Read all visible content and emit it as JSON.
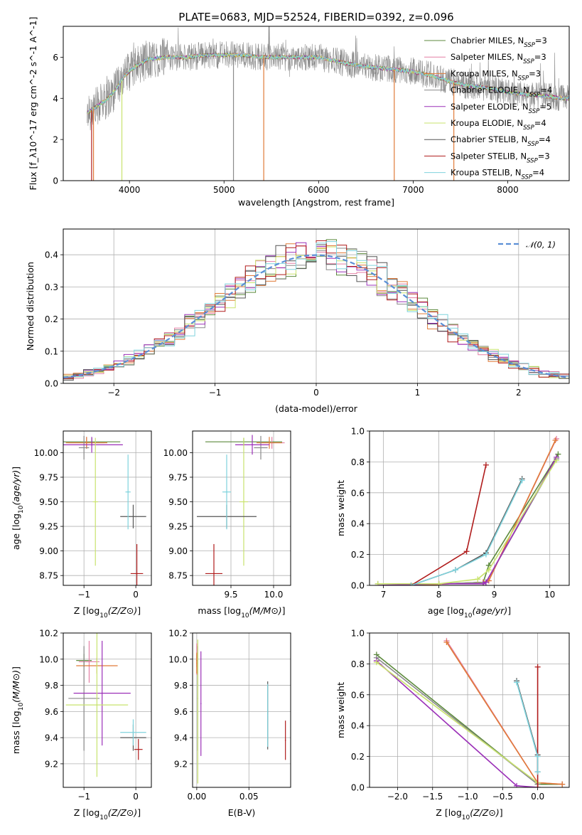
{
  "title": "PLATE=0683, MJD=52524, FIBERID=0392, z=0.096",
  "colors": {
    "Chabrier MILES": "#5c8a3c",
    "Salpeter MILES": "#e47fa4",
    "Kroupa MILES": "#e07b39",
    "Chabrier ELODIE": "#8a8a8a",
    "Salpeter ELODIE": "#9b30b8",
    "Kroupa ELODIE": "#c9e36e",
    "Chabrier STELIB": "#555555",
    "Salpeter STELIB": "#b01c1c",
    "Kroupa STELIB": "#7fd3dd"
  },
  "legend1": [
    {
      "name": "Chabrier MILES",
      "nssp": "3"
    },
    {
      "name": "Salpeter MILES",
      "nssp": "3"
    },
    {
      "name": "Kroupa MILES",
      "nssp": "3"
    },
    {
      "name": "Chabrier ELODIE",
      "nssp": "4"
    },
    {
      "name": "Salpeter ELODIE",
      "nssp": "5"
    },
    {
      "name": "Kroupa ELODIE",
      "nssp": "4"
    },
    {
      "name": "Chabrier STELIB",
      "nssp": "4"
    },
    {
      "name": "Salpeter STELIB",
      "nssp": "3"
    },
    {
      "name": "Kroupa STELIB",
      "nssp": "4"
    }
  ],
  "chart_data": [
    {
      "id": "spectrum",
      "type": "line",
      "xlabel": "wavelength [Angstrom, rest frame]",
      "ylabel": "Flux [f_λ10^-17 erg cm^-2 s^-1 A^-1]",
      "xlim": [
        3300,
        8650
      ],
      "ylim": [
        0,
        7.5
      ],
      "xticks": [
        4000,
        5000,
        6000,
        7000,
        8000
      ],
      "yticks": [
        0,
        2,
        4,
        6
      ],
      "continuum": {
        "x": [
          3550,
          3650,
          3750,
          3850,
          3950,
          4050,
          4200,
          4400,
          4600,
          4800,
          5000,
          5200,
          5400,
          5600,
          5800,
          6000,
          6200,
          6400,
          6600,
          6800,
          7000,
          7200,
          7400,
          7600,
          7800,
          8000,
          8200,
          8400,
          8600
        ],
        "y": [
          3.3,
          3.6,
          3.9,
          4.4,
          5.1,
          5.5,
          5.9,
          6.0,
          6.0,
          6.1,
          6.1,
          6.1,
          6.0,
          6.0,
          6.0,
          6.0,
          5.8,
          5.6,
          5.5,
          5.4,
          5.3,
          5.1,
          4.8,
          4.6,
          4.5,
          4.3,
          4.2,
          4.1,
          4.0
        ]
      }
    },
    {
      "id": "residuals",
      "type": "histogram",
      "xlabel": "(data-model)/error",
      "ylabel": "Normed distribution",
      "xlim": [
        -2.5,
        2.5
      ],
      "ylim": [
        0,
        0.48
      ],
      "xticks": [
        -2,
        -1,
        0,
        1,
        2
      ],
      "yticks": [
        0.0,
        0.1,
        0.2,
        0.3,
        0.4
      ],
      "bin_width": 0.1,
      "reference": {
        "name": "𝒩(0, 1)",
        "mean": 0,
        "sigma": 1
      }
    },
    {
      "id": "age_vs_Z",
      "type": "scatter",
      "xlabel": "Z [log10(Z/Z⊙)]",
      "ylabel": "age [log10(age/yr)]",
      "xlim": [
        -1.4,
        0.3
      ],
      "ylim": [
        8.65,
        10.22
      ],
      "xticks": [
        -1,
        0
      ],
      "yticks": [
        8.75,
        9.0,
        9.25,
        9.5,
        9.75,
        10.0
      ],
      "points": [
        {
          "s": "Chabrier MILES",
          "x": -0.85,
          "xerr": 0.55,
          "y": 10.11,
          "yerr": 0.04
        },
        {
          "s": "Salpeter MILES",
          "x": -0.95,
          "xerr": 0.35,
          "y": 10.1,
          "yerr": 0.06
        },
        {
          "s": "Kroupa MILES",
          "x": -0.95,
          "xerr": 0.4,
          "y": 10.1,
          "yerr": 0.06
        },
        {
          "s": "Chabrier ELODIE",
          "x": -1.0,
          "xerr": 0.1,
          "y": 10.05,
          "yerr": 0.12
        },
        {
          "s": "Salpeter ELODIE",
          "x": -0.85,
          "xerr": 0.6,
          "y": 10.08,
          "yerr": 0.08
        },
        {
          "s": "Kroupa ELODIE",
          "x": -0.78,
          "xerr": 0.05,
          "y": 9.5,
          "yerr": 0.65
        },
        {
          "s": "Chabrier STELIB",
          "x": -0.05,
          "xerr": 0.25,
          "y": 9.35,
          "yerr": 0.12
        },
        {
          "s": "Salpeter STELIB",
          "x": 0.02,
          "xerr": 0.12,
          "y": 8.77,
          "yerr": 0.3
        },
        {
          "s": "Kroupa STELIB",
          "x": -0.15,
          "xerr": 0.05,
          "y": 9.6,
          "yerr": 0.38
        }
      ]
    },
    {
      "id": "age_vs_mass",
      "type": "scatter",
      "xlabel": "mass [log10(M/M⊙)]",
      "ylabel": "",
      "xlim": [
        9.05,
        10.2
      ],
      "ylim": [
        8.65,
        10.22
      ],
      "xticks": [
        9.5,
        10.0
      ],
      "yticks": [
        8.75,
        9.0,
        9.25,
        9.5,
        9.75,
        10.0
      ],
      "points": [
        {
          "s": "Chabrier MILES",
          "x": 9.65,
          "xerr": 0.45,
          "y": 10.11,
          "yerr": 0.04
        },
        {
          "s": "Salpeter MILES",
          "x": 9.98,
          "xerr": 0.15,
          "y": 10.1,
          "yerr": 0.06
        },
        {
          "s": "Kroupa MILES",
          "x": 9.95,
          "xerr": 0.15,
          "y": 10.1,
          "yerr": 0.06
        },
        {
          "s": "Chabrier ELODIE",
          "x": 9.85,
          "xerr": 0.08,
          "y": 10.05,
          "yerr": 0.12
        },
        {
          "s": "Salpeter ELODIE",
          "x": 9.75,
          "xerr": 0.2,
          "y": 10.08,
          "yerr": 0.1
        },
        {
          "s": "Kroupa ELODIE",
          "x": 9.65,
          "xerr": 0.05,
          "y": 9.5,
          "yerr": 0.65
        },
        {
          "s": "Chabrier STELIB",
          "x": 9.45,
          "xerr": 0.35,
          "y": 9.35,
          "yerr": 0.12
        },
        {
          "s": "Salpeter STELIB",
          "x": 9.3,
          "xerr": 0.1,
          "y": 8.77,
          "yerr": 0.3
        },
        {
          "s": "Kroupa STELIB",
          "x": 9.45,
          "xerr": 0.05,
          "y": 9.6,
          "yerr": 0.38
        }
      ]
    },
    {
      "id": "massweight_vs_age",
      "type": "line",
      "xlabel": "age [log10(age/yr)]",
      "ylabel": "mass weight",
      "xlim": [
        6.75,
        10.35
      ],
      "ylim": [
        0,
        1
      ],
      "xticks": [
        7,
        8,
        9,
        10
      ],
      "yticks": [
        0.0,
        0.2,
        0.4,
        0.6,
        0.8,
        1.0
      ],
      "series": [
        {
          "s": "Chabrier MILES",
          "x": [
            7.5,
            8.8,
            8.9,
            10.15
          ],
          "y": [
            0.0,
            0.02,
            0.13,
            0.85
          ]
        },
        {
          "s": "Salpeter MILES",
          "x": [
            7.5,
            8.8,
            8.9,
            10.12
          ],
          "y": [
            0.0,
            0.02,
            0.03,
            0.95
          ]
        },
        {
          "s": "Kroupa MILES",
          "x": [
            7.5,
            8.8,
            8.9,
            10.1
          ],
          "y": [
            0.0,
            0.02,
            0.03,
            0.94
          ]
        },
        {
          "s": "Chabrier ELODIE",
          "x": [
            6.9,
            8.0,
            8.85,
            10.12
          ],
          "y": [
            0.01,
            0.01,
            0.02,
            0.82
          ]
        },
        {
          "s": "Salpeter ELODIE",
          "x": [
            6.9,
            8.0,
            8.8,
            8.85,
            10.12
          ],
          "y": [
            0.0,
            0.01,
            0.01,
            0.02,
            0.83
          ]
        },
        {
          "s": "Kroupa ELODIE",
          "x": [
            6.9,
            8.0,
            8.7,
            8.9,
            10.12
          ],
          "y": [
            0.01,
            0.01,
            0.04,
            0.1,
            0.81
          ]
        },
        {
          "s": "Chabrier STELIB",
          "x": [
            7.5,
            8.3,
            8.85,
            9.5
          ],
          "y": [
            0.0,
            0.1,
            0.21,
            0.69
          ]
        },
        {
          "s": "Salpeter STELIB",
          "x": [
            7.5,
            8.5,
            8.85
          ],
          "y": [
            0.0,
            0.22,
            0.78
          ]
        },
        {
          "s": "Kroupa STELIB",
          "x": [
            7.5,
            8.3,
            8.85,
            9.5
          ],
          "y": [
            0.0,
            0.1,
            0.2,
            0.68
          ]
        }
      ]
    },
    {
      "id": "mass_vs_Z",
      "type": "scatter",
      "xlabel": "Z [log10(Z/Z⊙)]",
      "ylabel": "mass [log10(M/M⊙)]",
      "xlim": [
        -1.4,
        0.3
      ],
      "ylim": [
        9.02,
        10.2
      ],
      "xticks": [
        -1,
        0
      ],
      "yticks": [
        9.2,
        9.4,
        9.6,
        9.8,
        10.0,
        10.2
      ],
      "points": [
        {
          "s": "Chabrier MILES",
          "x": -1.0,
          "xerr": 0.15,
          "y": 9.99,
          "yerr": 0.05
        },
        {
          "s": "Salpeter MILES",
          "x": -0.9,
          "xerr": 0.2,
          "y": 9.98,
          "yerr": 0.16
        },
        {
          "s": "Kroupa MILES",
          "x": -0.75,
          "xerr": 0.4,
          "y": 9.95,
          "yerr": 0.06
        },
        {
          "s": "Chabrier ELODIE",
          "x": -1.0,
          "xerr": 0.3,
          "y": 9.7,
          "yerr": 0.4
        },
        {
          "s": "Salpeter ELODIE",
          "x": -0.65,
          "xerr": 0.55,
          "y": 9.74,
          "yerr": 0.4
        },
        {
          "s": "Kroupa ELODIE",
          "x": -0.75,
          "xerr": 0.6,
          "y": 9.65,
          "yerr": 0.55
        },
        {
          "s": "Chabrier STELIB",
          "x": -0.05,
          "xerr": 0.25,
          "y": 9.4,
          "yerr": 0.1
        },
        {
          "s": "Salpeter STELIB",
          "x": 0.05,
          "xerr": 0.08,
          "y": 9.31,
          "yerr": 0.08
        },
        {
          "s": "Kroupa STELIB",
          "x": -0.05,
          "xerr": 0.25,
          "y": 9.44,
          "yerr": 0.1
        }
      ]
    },
    {
      "id": "mass_vs_EBV",
      "type": "scatter",
      "xlabel": "E(B-V)",
      "ylabel": "",
      "xlim": [
        -0.004,
        0.09
      ],
      "ylim": [
        9.02,
        10.2
      ],
      "xticks": [
        0.0,
        0.05
      ],
      "yticks": [
        9.2,
        9.4,
        9.6,
        9.8,
        10.0,
        10.2
      ],
      "points": [
        {
          "s": "Chabrier MILES",
          "x": 0.0,
          "y": 9.99,
          "yerr": 0.05
        },
        {
          "s": "Salpeter MILES",
          "x": 0.0,
          "y": 10.0,
          "yerr": 0.12
        },
        {
          "s": "Kroupa MILES",
          "x": 0.0,
          "y": 9.97,
          "yerr": 0.08
        },
        {
          "s": "Chabrier ELODIE",
          "x": 0.001,
          "y": 9.7,
          "yerr": 0.4
        },
        {
          "s": "Salpeter ELODIE",
          "x": 0.004,
          "y": 9.66,
          "yerr": 0.4
        },
        {
          "s": "Kroupa ELODIE",
          "x": 0.001,
          "y": 9.6,
          "yerr": 0.55
        },
        {
          "s": "Chabrier STELIB",
          "x": 0.068,
          "y": 9.57,
          "yerr": 0.26
        },
        {
          "s": "Salpeter STELIB",
          "x": 0.085,
          "y": 9.38,
          "yerr": 0.15
        },
        {
          "s": "Kroupa STELIB",
          "x": 0.068,
          "y": 9.57,
          "yerr": 0.24
        }
      ]
    },
    {
      "id": "massweight_vs_Z",
      "type": "line",
      "xlabel": "Z [log10(Z/Z⊙)]",
      "ylabel": "mass weight",
      "xlim": [
        -2.4,
        0.45
      ],
      "ylim": [
        0,
        1
      ],
      "xticks": [
        -2.0,
        -1.5,
        -1.0,
        -0.5,
        0.0
      ],
      "yticks": [
        0.0,
        0.2,
        0.4,
        0.6,
        0.8,
        1.0
      ],
      "series": [
        {
          "s": "Chabrier MILES",
          "x": [
            -2.3,
            0.0,
            0.35
          ],
          "y": [
            0.86,
            0.02,
            0.02
          ]
        },
        {
          "s": "Salpeter MILES",
          "x": [
            -1.3,
            0.0,
            0.35
          ],
          "y": [
            0.95,
            0.03,
            0.02
          ]
        },
        {
          "s": "Kroupa MILES",
          "x": [
            -1.3,
            0.0,
            0.35
          ],
          "y": [
            0.94,
            0.03,
            0.02
          ]
        },
        {
          "s": "Chabrier ELODIE",
          "x": [
            -2.3,
            0.0
          ],
          "y": [
            0.84,
            0.02
          ]
        },
        {
          "s": "Salpeter ELODIE",
          "x": [
            -2.3,
            -0.3,
            0.0
          ],
          "y": [
            0.82,
            0.01,
            0.0
          ]
        },
        {
          "s": "Kroupa ELODIE",
          "x": [
            -2.3,
            0.0
          ],
          "y": [
            0.81,
            0.03
          ]
        },
        {
          "s": "Chabrier STELIB",
          "x": [
            -0.3,
            0.0,
            0.0
          ],
          "y": [
            0.69,
            0.21,
            0.1
          ]
        },
        {
          "s": "Salpeter STELIB",
          "x": [
            0.0,
            0.0
          ],
          "y": [
            0.78,
            0.0
          ]
        },
        {
          "s": "Kroupa STELIB",
          "x": [
            -0.3,
            0.0,
            0.0
          ],
          "y": [
            0.68,
            0.2,
            0.1
          ]
        }
      ]
    }
  ]
}
